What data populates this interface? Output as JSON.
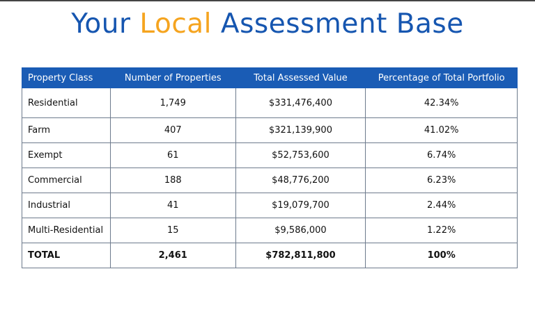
{
  "title": {
    "part1": "Your ",
    "highlight": "Local",
    "part2": " Assessment Base"
  },
  "colors": {
    "title_blue": "#1656b0",
    "title_orange": "#f5a41f",
    "header_bg": "#1a5cb5"
  },
  "table": {
    "headers": [
      "Property Class",
      "Number of Properties",
      "Total Assessed Value",
      "Percentage of Total Portfolio"
    ],
    "rows": [
      [
        "Residential",
        "1,749",
        "$331,476,400",
        "42.34%"
      ],
      [
        "Farm",
        "407",
        "$321,139,900",
        "41.02%"
      ],
      [
        "Exempt",
        "61",
        "$52,753,600",
        "6.74%"
      ],
      [
        "Commercial",
        "188",
        "$48,776,200",
        "6.23%"
      ],
      [
        "Industrial",
        "41",
        "$19,079,700",
        "2.44%"
      ],
      [
        "Multi-Residential",
        "15",
        "$9,586,000",
        "1.22%"
      ]
    ],
    "total": [
      "TOTAL",
      "2,461",
      "$782,811,800",
      "100%"
    ]
  }
}
